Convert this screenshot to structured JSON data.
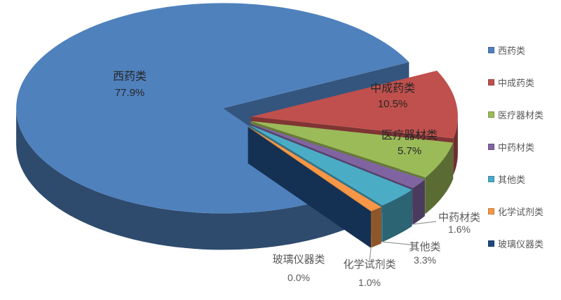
{
  "chart_data": {
    "type": "pie",
    "style": "3d-exploded-pie",
    "title": "",
    "series": [
      {
        "name": "西药类",
        "value": 77.9,
        "label": "77.9%",
        "color": "#4F81BD"
      },
      {
        "name": "中成药类",
        "value": 10.5,
        "label": "10.5%",
        "color": "#C0504D"
      },
      {
        "name": "医疗器材类",
        "value": 5.7,
        "label": "5.7%",
        "color": "#9BBB59"
      },
      {
        "name": "中药材类",
        "value": 1.6,
        "label": "1.6%",
        "color": "#8064A2"
      },
      {
        "name": "其他类",
        "value": 3.3,
        "label": "3.3%",
        "color": "#4BACC6"
      },
      {
        "name": "化学试剂类",
        "value": 1.0,
        "label": "1.0%",
        "color": "#F79646"
      },
      {
        "name": "玻璃仪器类",
        "value": 0.0,
        "label": "0.0%",
        "color": "#1F497D"
      }
    ],
    "legend": {
      "position": "right",
      "entries": [
        "西药类",
        "中成药类",
        "医疗器材类",
        "中药材类",
        "其他类",
        "化学试剂类",
        "玻璃仪器类"
      ]
    },
    "layout_hints": {
      "clockwise": true,
      "big_slice_direction": "left",
      "exploded_group_direction": "lower-right",
      "background": "#FFFFFF",
      "on_slice_label_color": "#262626",
      "outside_label_color": "#595959",
      "legend_text_color": "#595959"
    }
  }
}
